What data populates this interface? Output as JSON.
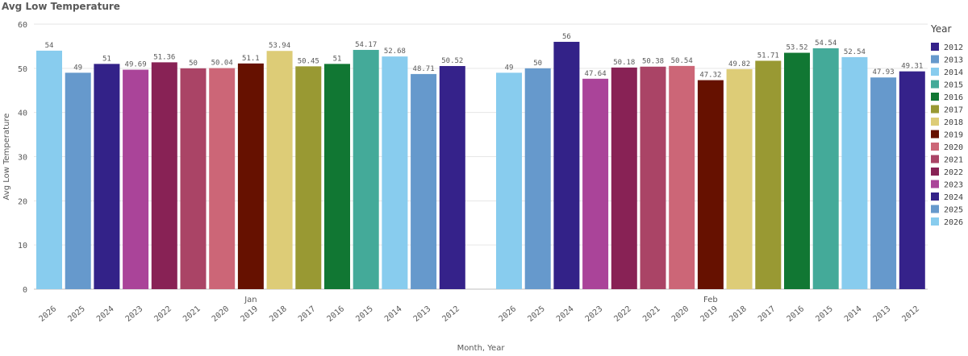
{
  "chart_data": {
    "type": "bar",
    "title": "Avg Low Temperature",
    "ylabel": "Avg Low Temperature",
    "xlabel": "Month, Year",
    "ylim": [
      0,
      60
    ],
    "yticks": [
      0,
      10,
      20,
      30,
      40,
      50,
      60
    ],
    "grid": true,
    "legend_title": "Year",
    "legend_position": "right",
    "legend": [
      {
        "label": "2012",
        "color": "#35228a"
      },
      {
        "label": "2013",
        "color": "#6699cc"
      },
      {
        "label": "2014",
        "color": "#88ccee"
      },
      {
        "label": "2015",
        "color": "#44aa99"
      },
      {
        "label": "2016",
        "color": "#117733"
      },
      {
        "label": "2017",
        "color": "#999933"
      },
      {
        "label": "2018",
        "color": "#ddcc77"
      },
      {
        "label": "2019",
        "color": "#661100"
      },
      {
        "label": "2020",
        "color": "#cc6677"
      },
      {
        "label": "2021",
        "color": "#aa4466"
      },
      {
        "label": "2022",
        "color": "#882255"
      },
      {
        "label": "2023",
        "color": "#aa4499"
      },
      {
        "label": "2024",
        "color": "#332288"
      },
      {
        "label": "2025",
        "color": "#6699cc"
      },
      {
        "label": "2026",
        "color": "#88ccee"
      }
    ],
    "groups": [
      {
        "month": "Jan",
        "years": [
          "2026",
          "2025",
          "2024",
          "2023",
          "2022",
          "2021",
          "2020",
          "2019",
          "2018",
          "2017",
          "2016",
          "2015",
          "2014",
          "2013",
          "2012"
        ],
        "values": [
          54,
          49,
          51,
          49.69,
          51.36,
          50,
          50.04,
          51.1,
          53.94,
          50.45,
          51,
          54.17,
          52.68,
          48.71,
          50.52
        ],
        "labels": [
          "54",
          "49",
          "51",
          "49.69",
          "51.36",
          "50",
          "50.04",
          "51.1",
          "53.94",
          "50.45",
          "51",
          "54.17",
          "52.68",
          "48.71",
          "50.52"
        ]
      },
      {
        "month": "Feb",
        "years": [
          "2026",
          "2025",
          "2024",
          "2023",
          "2022",
          "2021",
          "2020",
          "2019",
          "2018",
          "2017",
          "2016",
          "2015",
          "2014",
          "2013",
          "2012"
        ],
        "values": [
          49,
          50,
          56,
          47.64,
          50.18,
          50.38,
          50.54,
          47.32,
          49.82,
          51.71,
          53.52,
          54.54,
          52.54,
          47.93,
          49.31
        ],
        "labels": [
          "49",
          "50",
          "56",
          "47.64",
          "50.18",
          "50.38",
          "50.54",
          "47.32",
          "49.82",
          "51.71",
          "53.52",
          "54.54",
          "52.54",
          "47.93",
          "49.31"
        ]
      }
    ]
  }
}
